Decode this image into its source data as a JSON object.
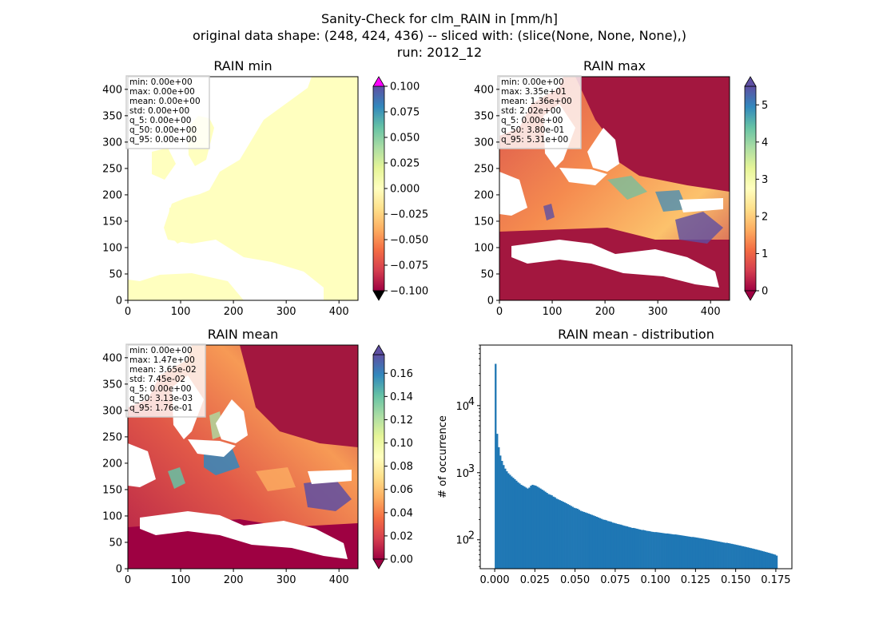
{
  "title_lines": [
    "Sanity-Check for clm_RAIN in [mm/h]",
    "original data shape: (248, 424, 436) -- sliced with: (slice(None, None, None),)",
    "run: 2012_12"
  ],
  "colors": {
    "histogram": "#1f77b4",
    "colormap": "Spectral",
    "mask": "#ffffff"
  },
  "chart_data": [
    {
      "type": "heatmap",
      "title": "RAIN min",
      "x_ticks": [
        0,
        100,
        200,
        300,
        400
      ],
      "y_ticks": [
        0,
        50,
        100,
        150,
        200,
        250,
        300,
        350,
        400
      ],
      "xlim": [
        0,
        436
      ],
      "ylim": [
        0,
        424
      ],
      "colorbar": {
        "ticks": [
          0.1,
          0.075,
          0.05,
          0.025,
          0.0,
          -0.025,
          -0.05,
          -0.075,
          -0.1
        ],
        "tick_labels": [
          "0.100",
          "0.075",
          "0.050",
          "0.025",
          "0.000",
          "−0.025",
          "−0.050",
          "−0.075",
          "−0.100"
        ],
        "range": [
          -0.1,
          0.1
        ],
        "extend": "both"
      },
      "stats": [
        "min: 0.00e+00",
        "max: 0.00e+00",
        "mean: 0.00e+00",
        "std: 0.00e+00",
        "q_5: 0.00e+00",
        "q_50: 0.00e+00",
        "q_95: 0.00e+00"
      ]
    },
    {
      "type": "heatmap",
      "title": "RAIN max",
      "x_ticks": [
        0,
        100,
        200,
        300,
        400
      ],
      "y_ticks": [
        0,
        50,
        100,
        150,
        200,
        250,
        300,
        350,
        400
      ],
      "xlim": [
        0,
        436
      ],
      "ylim": [
        0,
        424
      ],
      "colorbar": {
        "ticks": [
          5,
          4,
          3,
          2,
          1,
          0
        ],
        "tick_labels": [
          "5",
          "4",
          "3",
          "2",
          "1",
          "0"
        ],
        "range": [
          0,
          5.5
        ],
        "extend": "both"
      },
      "stats": [
        "min: 0.00e+00",
        "max: 3.35e+01",
        "mean: 1.36e+00",
        "std: 2.02e+00",
        "q_5: 0.00e+00",
        "q_50: 3.80e-01",
        "q_95: 5.31e+00"
      ]
    },
    {
      "type": "heatmap",
      "title": "RAIN mean",
      "x_ticks": [
        0,
        100,
        200,
        300,
        400
      ],
      "y_ticks": [
        0,
        50,
        100,
        150,
        200,
        250,
        300,
        350,
        400
      ],
      "xlim": [
        0,
        436
      ],
      "ylim": [
        0,
        424
      ],
      "colorbar": {
        "ticks": [
          0.16,
          0.14,
          0.12,
          0.1,
          0.08,
          0.06,
          0.04,
          0.02,
          0.0
        ],
        "tick_labels": [
          "0.16",
          "0.14",
          "0.12",
          "0.10",
          "0.08",
          "0.06",
          "0.04",
          "0.02",
          "0.00"
        ],
        "range": [
          0,
          0.176
        ],
        "extend": "both"
      },
      "stats": [
        "min: 0.00e+00",
        "max: 1.47e+00",
        "mean: 3.65e-02",
        "std: 7.45e-02",
        "q_5: 0.00e+00",
        "q_50: 3.13e-03",
        "q_95: 1.76e-01"
      ]
    },
    {
      "type": "bar",
      "title": "RAIN mean - distribution",
      "ylabel": "# of occurrence",
      "yscale": "log",
      "ylim": [
        37,
        80000
      ],
      "xlim": [
        -0.009,
        0.185
      ],
      "x_ticks": [
        0.0,
        0.025,
        0.05,
        0.075,
        0.1,
        0.125,
        0.15,
        0.175
      ],
      "x_tick_labels": [
        "0.000",
        "0.025",
        "0.050",
        "0.075",
        "0.100",
        "0.125",
        "0.150",
        "0.175"
      ],
      "y_ticks": [
        100,
        1000,
        10000
      ],
      "y_tick_labels": [
        "10",
        "10",
        "10"
      ],
      "y_tick_exponents": [
        "2",
        "3",
        "4"
      ],
      "bin_range": [
        0.0,
        0.176
      ],
      "bin_count": 176,
      "values": [
        42000,
        3800,
        2400,
        1800,
        1500,
        1300,
        1150,
        1050,
        980,
        930,
        880,
        840,
        800,
        760,
        720,
        690,
        660,
        640,
        620,
        600,
        580,
        600,
        640,
        660,
        650,
        640,
        620,
        600,
        580,
        560,
        540,
        520,
        500,
        480,
        470,
        460,
        440,
        430,
        410,
        400,
        390,
        380,
        370,
        360,
        350,
        340,
        330,
        320,
        310,
        300,
        295,
        290,
        280,
        270,
        265,
        260,
        255,
        250,
        245,
        240,
        235,
        230,
        225,
        220,
        215,
        210,
        205,
        200,
        198,
        195,
        190,
        188,
        185,
        180,
        178,
        175,
        172,
        170,
        168,
        165,
        162,
        160,
        158,
        155,
        153,
        150,
        150,
        148,
        146,
        144,
        142,
        140,
        140,
        138,
        136,
        135,
        134,
        132,
        131,
        130,
        130,
        129,
        128,
        127,
        126,
        125,
        124,
        124,
        123,
        122,
        121,
        120,
        120,
        119,
        118,
        117,
        116,
        115,
        114,
        113,
        112,
        111,
        110,
        110,
        109,
        108,
        107,
        106,
        105,
        104,
        103,
        102,
        101,
        100,
        99,
        98,
        97,
        96,
        95,
        94,
        93,
        92,
        91,
        90,
        90,
        89,
        88,
        87,
        86,
        85,
        84,
        83,
        82,
        81,
        80,
        79,
        78,
        77,
        76,
        75,
        74,
        73,
        72,
        71,
        70,
        69,
        68,
        67,
        66,
        65,
        64,
        63,
        62,
        61,
        60,
        58
      ]
    }
  ]
}
